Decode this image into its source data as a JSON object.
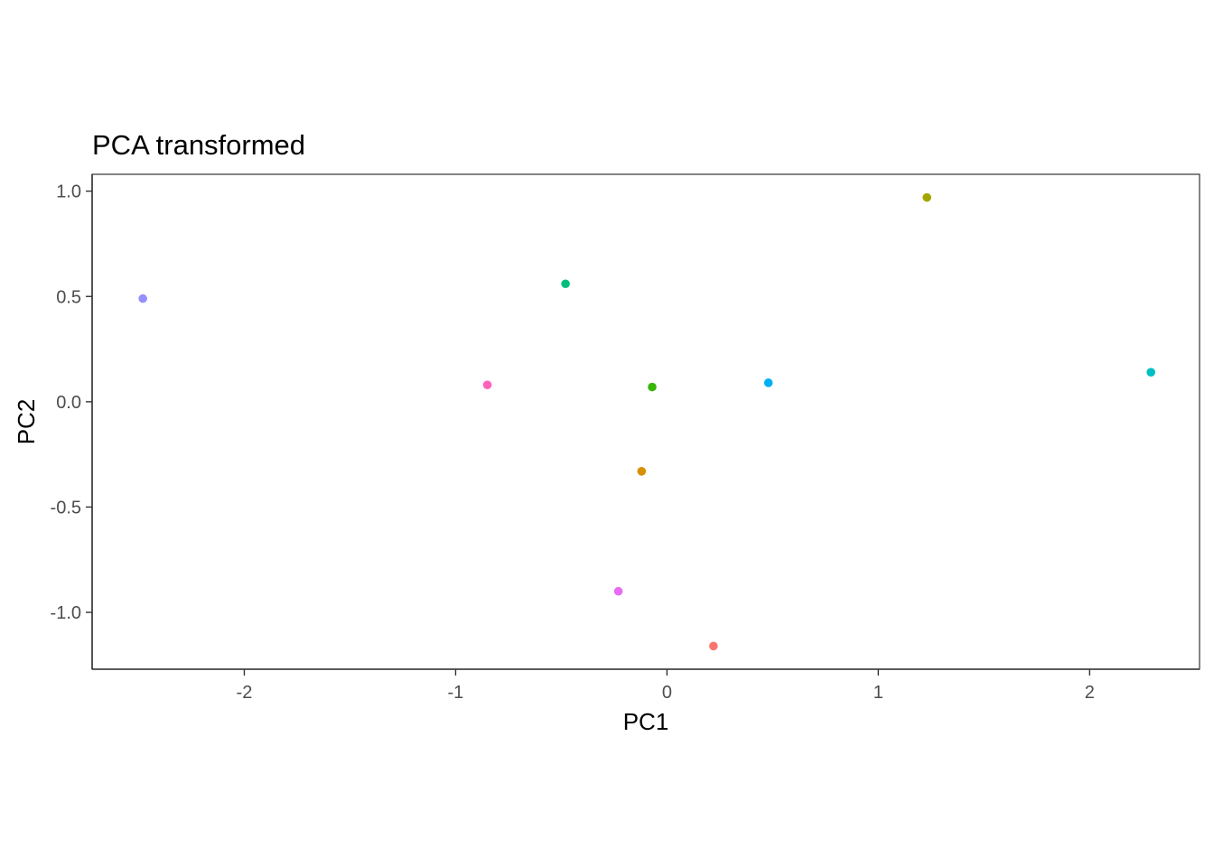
{
  "chart_data": {
    "type": "scatter",
    "title": "PCA transformed",
    "xlabel": "PC1",
    "ylabel": "PC2",
    "xlim": [
      -2.72,
      2.52
    ],
    "ylim": [
      -1.27,
      1.08
    ],
    "x_ticks": [
      -2,
      -1,
      0,
      1,
      2
    ],
    "y_ticks": [
      1.0,
      0.5,
      0.0,
      -0.5,
      -1.0
    ],
    "x_tick_labels": [
      "-2",
      "-1",
      "0",
      "1",
      "2"
    ],
    "y_tick_labels": [
      "1.0",
      "0.5",
      "0.0",
      "-0.5",
      "-1.0"
    ],
    "grid": false,
    "legend": "none",
    "points": [
      {
        "x": -2.48,
        "y": 0.49,
        "color": "#9590FF"
      },
      {
        "x": -0.85,
        "y": 0.08,
        "color": "#FF62BC"
      },
      {
        "x": -0.48,
        "y": 0.56,
        "color": "#00BF7D"
      },
      {
        "x": -0.23,
        "y": -0.9,
        "color": "#E76BF3"
      },
      {
        "x": -0.12,
        "y": -0.33,
        "color": "#D89000"
      },
      {
        "x": -0.07,
        "y": 0.07,
        "color": "#39B600"
      },
      {
        "x": 0.22,
        "y": -1.16,
        "color": "#F8766D"
      },
      {
        "x": 0.48,
        "y": 0.09,
        "color": "#00B0F6"
      },
      {
        "x": 1.23,
        "y": 0.97,
        "color": "#A3A500"
      },
      {
        "x": 2.29,
        "y": 0.14,
        "color": "#00BFC4"
      }
    ]
  }
}
